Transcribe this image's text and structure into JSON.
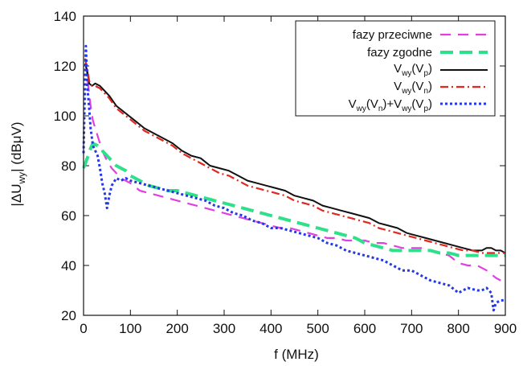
{
  "colors": {
    "fazy_przeciwne": "#e040e0",
    "fazy_zgodne": "#2ee08a",
    "vwy_vp": "#111111",
    "vwy_vn": "#e0281e",
    "sum": "#2438e8"
  },
  "chart_data": {
    "type": "line",
    "title": "",
    "xlabel": "f (MHz)",
    "ylabel": "|ΔU",
    "ylabel_sub": "wy",
    "ylabel_rest": "| (dBμV)",
    "xlim": [
      0,
      900
    ],
    "ylim": [
      20,
      140
    ],
    "x_ticks": [
      "0",
      "100",
      "200",
      "300",
      "400",
      "500",
      "600",
      "700",
      "800",
      "900"
    ],
    "y_ticks": [
      "20",
      "40",
      "60",
      "80",
      "100",
      "120",
      "140"
    ],
    "legend_position": "top-right",
    "legend": {
      "entry1": "fazy przeciwne",
      "entry2": "fazy zgodne",
      "v": "V",
      "wy": "wy",
      "p": "p",
      "n": "n",
      "open": "(",
      "close": ")",
      "plus": ")+V"
    },
    "series": [
      {
        "name": "fazy przeciwne",
        "style": "long-dash",
        "x": [
          5,
          10,
          15,
          20,
          30,
          40,
          50,
          60,
          70,
          80,
          90,
          100,
          120,
          140,
          160,
          180,
          200,
          220,
          240,
          260,
          280,
          300,
          320,
          340,
          360,
          380,
          400,
          420,
          440,
          460,
          480,
          500,
          520,
          540,
          560,
          580,
          600,
          620,
          640,
          660,
          680,
          700,
          720,
          740,
          760,
          780,
          800,
          820,
          840,
          860,
          880,
          890
        ],
        "y": [
          121,
          112,
          104,
          98,
          92,
          86,
          82,
          79,
          77,
          75,
          74,
          73,
          70,
          69,
          68,
          67,
          66,
          65,
          64,
          63,
          62,
          61,
          60,
          59,
          58,
          57,
          56,
          55,
          55,
          54,
          53,
          52,
          51,
          51,
          50,
          50,
          50,
          49,
          49,
          48,
          47,
          47,
          47,
          46,
          45,
          44,
          41,
          40,
          40,
          38,
          35,
          34
        ]
      },
      {
        "name": "fazy zgodne",
        "style": "dash-thick",
        "x": [
          0,
          10,
          15,
          20,
          30,
          40,
          50,
          60,
          70,
          80,
          90,
          100,
          120,
          140,
          160,
          180,
          200,
          220,
          240,
          260,
          280,
          300,
          320,
          340,
          360,
          380,
          400,
          420,
          440,
          460,
          480,
          500,
          520,
          540,
          560,
          580,
          600,
          620,
          640,
          660,
          680,
          700,
          720,
          740,
          760,
          780,
          800,
          820,
          840,
          860,
          880,
          900
        ],
        "y": [
          79,
          84,
          87,
          89,
          88,
          86,
          84,
          82,
          80,
          79,
          78,
          76,
          74,
          72,
          71,
          70,
          70,
          69,
          68,
          67,
          66,
          65,
          64,
          63,
          62,
          61,
          60,
          59,
          58,
          57,
          56,
          55,
          54,
          53,
          52,
          51,
          49,
          48,
          47,
          46,
          46,
          46,
          46,
          46,
          45,
          45,
          44,
          44,
          44,
          44,
          44,
          44
        ]
      },
      {
        "name": "Vwy(Vp)",
        "style": "solid",
        "x": [
          3,
          8,
          12,
          18,
          25,
          35,
          45,
          55,
          70,
          90,
          110,
          130,
          150,
          170,
          190,
          210,
          230,
          250,
          270,
          290,
          310,
          330,
          350,
          370,
          390,
          410,
          430,
          450,
          470,
          490,
          510,
          530,
          550,
          570,
          590,
          610,
          630,
          650,
          670,
          690,
          710,
          730,
          750,
          770,
          790,
          810,
          830,
          850,
          860,
          870,
          880,
          890,
          900
        ],
        "y": [
          121,
          118,
          113,
          112,
          113,
          112,
          110,
          108,
          104,
          101,
          98,
          95,
          93,
          91,
          89,
          86,
          84,
          83,
          80,
          79,
          78,
          76,
          74,
          73,
          72,
          71,
          70,
          68,
          67,
          66,
          64,
          63,
          62,
          61,
          60,
          59,
          57,
          56,
          55,
          53,
          52,
          51,
          50,
          49,
          48,
          47,
          46,
          46,
          47,
          47,
          46,
          46,
          45
        ]
      },
      {
        "name": "Vwy(Vn)",
        "style": "dash-dot",
        "x": [
          3,
          8,
          12,
          18,
          25,
          35,
          45,
          55,
          70,
          90,
          110,
          130,
          150,
          170,
          190,
          210,
          230,
          250,
          270,
          290,
          310,
          330,
          350,
          370,
          390,
          410,
          430,
          450,
          470,
          490,
          510,
          530,
          550,
          570,
          590,
          610,
          630,
          650,
          670,
          690,
          710,
          730,
          750,
          770,
          790,
          810,
          830,
          850,
          870,
          890,
          900
        ],
        "y": [
          123,
          119,
          114,
          112,
          112,
          111,
          109,
          107,
          103,
          100,
          97,
          94,
          92,
          90,
          88,
          85,
          83,
          81,
          79,
          77,
          76,
          74,
          72,
          71,
          70,
          69,
          68,
          66,
          65,
          64,
          62,
          61,
          60,
          59,
          58,
          57,
          55,
          54,
          53,
          52,
          51,
          50,
          49,
          48,
          47,
          46,
          46,
          45,
          45,
          45,
          45
        ]
      },
      {
        "name": "Vwy(Vn)+Vwy(Vp)",
        "style": "dotted",
        "x": [
          0,
          5,
          8,
          12,
          15,
          20,
          25,
          30,
          35,
          40,
          45,
          50,
          55,
          60,
          70,
          80,
          90,
          100,
          120,
          140,
          160,
          180,
          200,
          220,
          240,
          260,
          280,
          300,
          320,
          340,
          360,
          380,
          400,
          420,
          440,
          460,
          480,
          500,
          520,
          540,
          560,
          580,
          600,
          620,
          640,
          660,
          680,
          700,
          720,
          740,
          760,
          780,
          800,
          820,
          840,
          850,
          860,
          870,
          875,
          880,
          890,
          900
        ],
        "y": [
          85,
          128,
          112,
          103,
          95,
          88,
          86,
          84,
          79,
          73,
          69,
          63,
          68,
          72,
          75,
          74,
          75,
          74,
          73,
          72,
          71,
          70,
          69,
          68,
          67,
          66,
          64,
          63,
          61,
          60,
          58,
          57,
          55,
          55,
          54,
          53,
          52,
          51,
          49,
          48,
          46,
          45,
          44,
          43,
          42,
          40,
          38,
          38,
          36,
          34,
          33,
          32,
          29,
          31,
          30,
          30,
          31,
          29,
          22,
          25,
          26,
          26
        ]
      }
    ]
  }
}
